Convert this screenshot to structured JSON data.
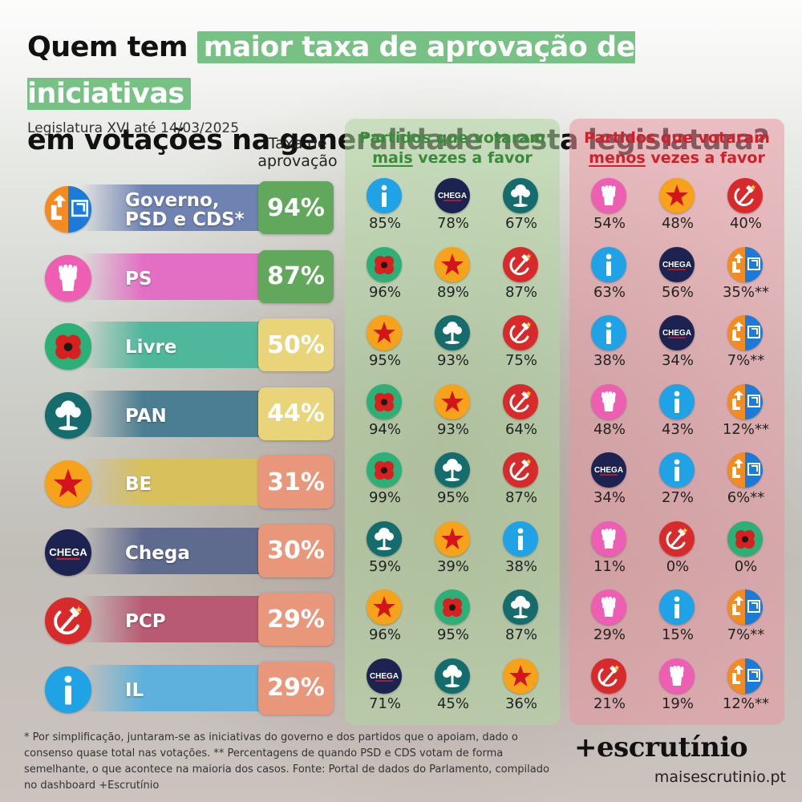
{
  "title": {
    "prefix": "Quem tem",
    "highlight": "maior taxa de aprovação de iniciativas",
    "line2": "em votações na generalidade nesta legislatura?"
  },
  "subtitle": "Legislatura XVI até 14/03/2025",
  "rate_header": [
    "Taxa de",
    "aprovação"
  ],
  "favor_header": {
    "line1": "Partidos que votaram",
    "emph": "mais",
    "rest": " vezes a favor"
  },
  "against_header": {
    "line1": "Partidos que votaram",
    "emph": "menos",
    "rest": " vezes a favor"
  },
  "parties": {
    "ps": {
      "color": "#ee5fb4",
      "glyph": "fist"
    },
    "be": {
      "color": "#f6a31b",
      "glyph": "star"
    },
    "pcp": {
      "color": "#d82a2a",
      "glyph": "hammer"
    },
    "il": {
      "color": "#1fa2e6",
      "glyph": "i"
    },
    "chega": {
      "color": "#1c2350",
      "glyph": "chega"
    },
    "pan": {
      "color": "#146c6d",
      "glyph": "tree"
    },
    "livre": {
      "color": "#2bb077",
      "glyph": "poppy"
    },
    "gov": {
      "color": "#f58a1f",
      "glyph": "gov"
    }
  },
  "chega_text": "CHEGA",
  "rows": [
    {
      "party": "gov",
      "name_lines": [
        "Governo,",
        "PSD e CDS*"
      ],
      "rate": "94%",
      "band": "#6f83b3",
      "rate_color": "#62a85c",
      "favor": [
        {
          "p": "il",
          "v": "85%"
        },
        {
          "p": "chega",
          "v": "78%"
        },
        {
          "p": "pan",
          "v": "67%"
        }
      ],
      "against": [
        {
          "p": "ps",
          "v": "54%"
        },
        {
          "p": "be",
          "v": "48%"
        },
        {
          "p": "pcp",
          "v": "40%"
        }
      ]
    },
    {
      "party": "ps",
      "name_lines": [
        "PS"
      ],
      "rate": "87%",
      "band": "#e26fc4",
      "rate_color": "#62a85c",
      "favor": [
        {
          "p": "livre",
          "v": "96%"
        },
        {
          "p": "be",
          "v": "89%"
        },
        {
          "p": "pcp",
          "v": "87%"
        }
      ],
      "against": [
        {
          "p": "il",
          "v": "63%"
        },
        {
          "p": "chega",
          "v": "56%"
        },
        {
          "p": "gov",
          "v": "35%**"
        }
      ]
    },
    {
      "party": "livre",
      "name_lines": [
        "Livre"
      ],
      "rate": "50%",
      "band": "#4fb79c",
      "rate_color": "#ead47a",
      "favor": [
        {
          "p": "be",
          "v": "95%"
        },
        {
          "p": "pan",
          "v": "93%"
        },
        {
          "p": "pcp",
          "v": "75%"
        }
      ],
      "against": [
        {
          "p": "il",
          "v": "38%"
        },
        {
          "p": "chega",
          "v": "34%"
        },
        {
          "p": "gov",
          "v": "7%**"
        }
      ]
    },
    {
      "party": "pan",
      "name_lines": [
        "PAN"
      ],
      "rate": "44%",
      "band": "#4b7e92",
      "rate_color": "#ead47a",
      "favor": [
        {
          "p": "livre",
          "v": "94%"
        },
        {
          "p": "be",
          "v": "93%"
        },
        {
          "p": "pcp",
          "v": "64%"
        }
      ],
      "against": [
        {
          "p": "ps",
          "v": "48%"
        },
        {
          "p": "il",
          "v": "43%"
        },
        {
          "p": "gov",
          "v": "12%**"
        }
      ]
    },
    {
      "party": "be",
      "name_lines": [
        "BE"
      ],
      "rate": "31%",
      "band": "#d8c05c",
      "rate_color": "#e8977b",
      "favor": [
        {
          "p": "livre",
          "v": "99%"
        },
        {
          "p": "pan",
          "v": "95%"
        },
        {
          "p": "pcp",
          "v": "87%"
        }
      ],
      "against": [
        {
          "p": "chega",
          "v": "34%"
        },
        {
          "p": "il",
          "v": "27%"
        },
        {
          "p": "gov",
          "v": "6%**"
        }
      ]
    },
    {
      "party": "chega",
      "name_lines": [
        "Chega"
      ],
      "rate": "30%",
      "band": "#5e6a8e",
      "rate_color": "#e8977b",
      "favor": [
        {
          "p": "pan",
          "v": "59%"
        },
        {
          "p": "be",
          "v": "39%"
        },
        {
          "p": "il",
          "v": "38%"
        }
      ],
      "against": [
        {
          "p": "ps",
          "v": "11%"
        },
        {
          "p": "pcp",
          "v": "0%"
        },
        {
          "p": "livre",
          "v": "0%"
        }
      ]
    },
    {
      "party": "pcp",
      "name_lines": [
        "PCP"
      ],
      "rate": "29%",
      "band": "#b85a73",
      "rate_color": "#e8977b",
      "favor": [
        {
          "p": "be",
          "v": "96%"
        },
        {
          "p": "livre",
          "v": "95%"
        },
        {
          "p": "pan",
          "v": "87%"
        }
      ],
      "against": [
        {
          "p": "ps",
          "v": "29%"
        },
        {
          "p": "il",
          "v": "15%"
        },
        {
          "p": "gov",
          "v": "7%**"
        }
      ]
    },
    {
      "party": "il",
      "name_lines": [
        "IL"
      ],
      "rate": "29%",
      "band": "#5eb1dc",
      "rate_color": "#e8977b",
      "favor": [
        {
          "p": "chega",
          "v": "71%"
        },
        {
          "p": "pan",
          "v": "45%"
        },
        {
          "p": "be",
          "v": "36%"
        }
      ],
      "against": [
        {
          "p": "pcp",
          "v": "21%"
        },
        {
          "p": "ps",
          "v": "19%"
        },
        {
          "p": "gov",
          "v": "12%**"
        }
      ]
    }
  ],
  "footnote": "* Por simplificação, juntaram-se as iniciativas do governo e dos partidos que o apoiam, dado o consenso quase total nas votações. ** Percentagens de quando PSD e CDS votam de forma semelhante, o que acontece na maioria dos casos. Fonte: Portal de dados do Parlamento, compilado no dashboard +Escrutínio",
  "brand": "+escrutínio",
  "brand_url": "maisescrutinio.pt"
}
